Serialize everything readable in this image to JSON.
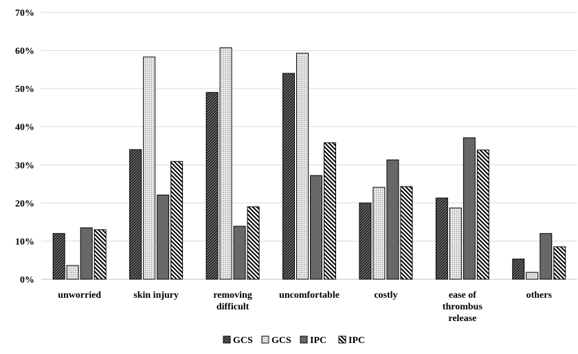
{
  "chart_data": {
    "type": "bar",
    "title": "",
    "xlabel": "",
    "ylabel": "",
    "ylim": [
      0,
      0.7
    ],
    "yticks": [
      0,
      0.1,
      0.2,
      0.3,
      0.4,
      0.5,
      0.6,
      0.7
    ],
    "ytick_labels": [
      "0%",
      "10%",
      "20%",
      "30%",
      "40%",
      "50%",
      "60%",
      "70%"
    ],
    "grid": true,
    "legend_position": "bottom",
    "categories": [
      [
        "unworried"
      ],
      [
        "skin injury"
      ],
      [
        "removing",
        "difficult"
      ],
      [
        "uncomfortable"
      ],
      [
        "costly"
      ],
      [
        "ease of",
        "thrombus",
        "release"
      ],
      [
        "others"
      ]
    ],
    "series": [
      {
        "name": "GCS",
        "pattern": "diagonal-dense-dark",
        "values": [
          0.12,
          0.34,
          0.49,
          0.54,
          0.2,
          0.213,
          0.053
        ]
      },
      {
        "name": "GCS",
        "pattern": "dotted-light",
        "values": [
          0.036,
          0.583,
          0.607,
          0.593,
          0.241,
          0.187,
          0.018
        ]
      },
      {
        "name": "IPC",
        "pattern": "solid-dark-gray",
        "values": [
          0.135,
          0.221,
          0.139,
          0.272,
          0.313,
          0.371,
          0.12
        ]
      },
      {
        "name": "IPC",
        "pattern": "backslash-hatch",
        "values": [
          0.13,
          0.309,
          0.19,
          0.358,
          0.243,
          0.339,
          0.085
        ]
      }
    ]
  }
}
